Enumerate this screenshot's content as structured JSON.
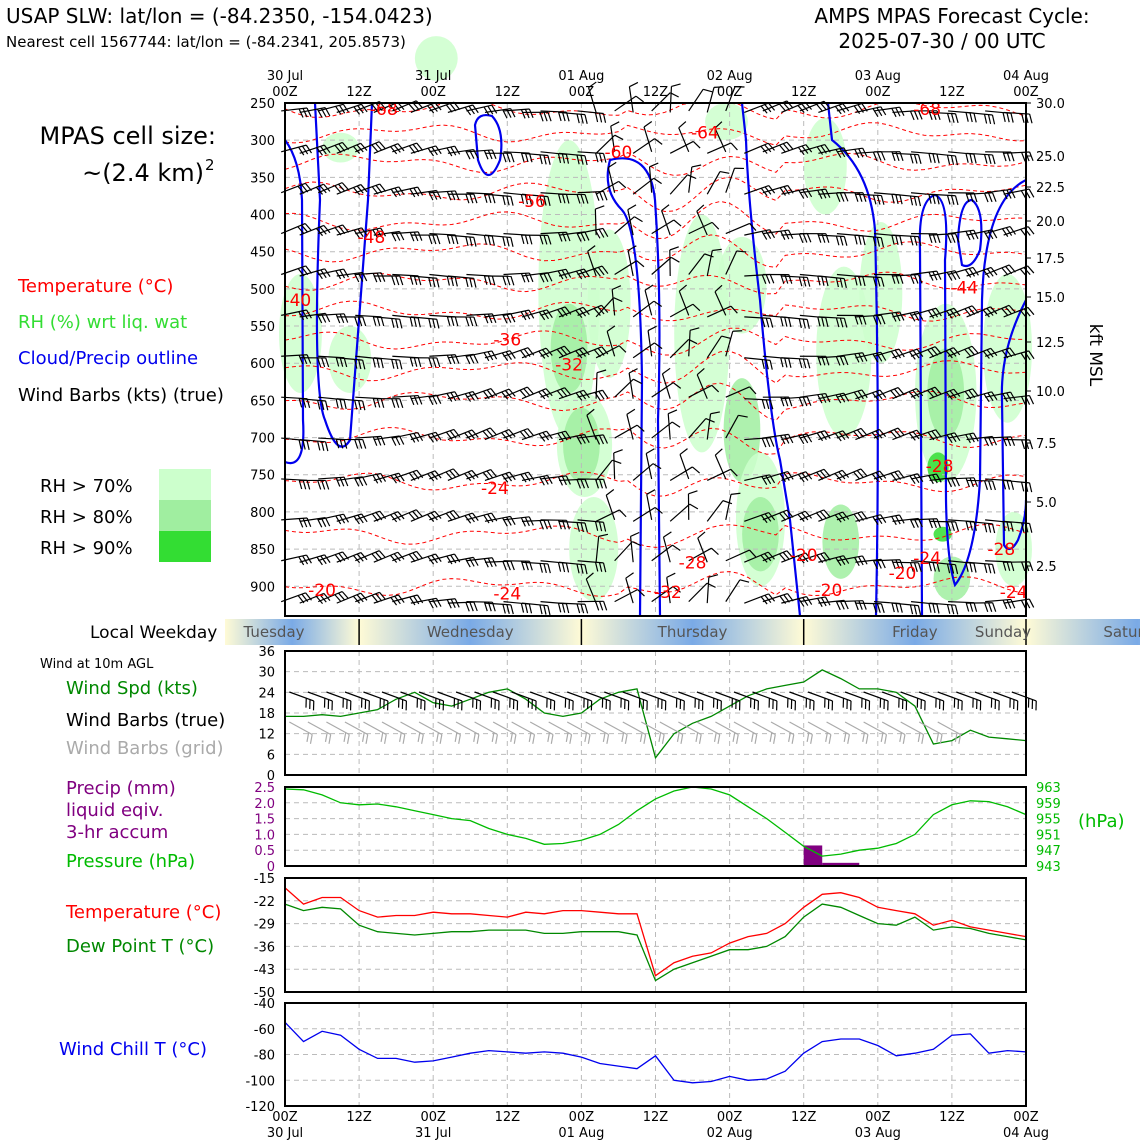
{
  "header": {
    "station_line": "USAP SLW: lat/lon = (-84.2350, -154.0423)",
    "cell_line": "Nearest cell 1567744: lat/lon = (-84.2341, 205.8573)",
    "cycle_line1": "AMPS MPAS Forecast Cycle:",
    "cycle_line2": "2025-07-30 / 00 UTC"
  },
  "cell_size": {
    "line1": "MPAS cell size:",
    "line2": "~(2.4 km)",
    "sup": "2"
  },
  "legend_upper": {
    "temperature": "Temperature (°C)",
    "rh": "RH (%) wrt liq. wat",
    "cloud": "Cloud/Precip outline",
    "wind": "Wind Barbs (kts) (true)",
    "rh70": "RH > 70%",
    "rh80": "RH > 80%",
    "rh90": "RH > 90%"
  },
  "colors": {
    "temperature": "#ff0000",
    "rh_label": "#33dd33",
    "cloud": "#0000ee",
    "rh70": "#ccffcc",
    "rh80": "#a0eea0",
    "rh90": "#33dd33",
    "wind_spd": "#008800",
    "precip": "#800080",
    "pressure": "#00bb00",
    "dewpoint": "#008800",
    "windchill": "#0000ee",
    "grid_barb": "#aaaaaa",
    "weekday_blue": "#7aaae6",
    "weekday_cream": "#fffbd6"
  },
  "weekday": {
    "label": "Local Weekday",
    "days": [
      "Tuesday",
      "Wednesday",
      "Thursday",
      "Friday",
      "Saturday",
      "Sunday"
    ]
  },
  "time_axis": {
    "top_labels": [
      [
        "30 Jul",
        "00Z"
      ],
      [
        "",
        "12Z"
      ],
      [
        "31 Jul",
        "00Z"
      ],
      [
        "",
        "12Z"
      ],
      [
        "01 Aug",
        "00Z"
      ],
      [
        "",
        "12Z"
      ],
      [
        "02 Aug",
        "00Z"
      ],
      [
        "",
        "12Z"
      ],
      [
        "03 Aug",
        "00Z"
      ],
      [
        "",
        "12Z"
      ],
      [
        "04 Aug",
        "00Z"
      ]
    ],
    "bottom_labels": [
      [
        "00Z",
        "30 Jul"
      ],
      [
        "12Z",
        ""
      ],
      [
        "00Z",
        "31 Jul"
      ],
      [
        "12Z",
        ""
      ],
      [
        "00Z",
        "01 Aug"
      ],
      [
        "12Z",
        ""
      ],
      [
        "00Z",
        "02 Aug"
      ],
      [
        "12Z",
        ""
      ],
      [
        "00Z",
        "03 Aug"
      ],
      [
        "12Z",
        ""
      ],
      [
        "00Z",
        "04 Aug"
      ]
    ]
  },
  "panel_labels": {
    "wind_header": "Wind at 10m AGL",
    "wind_spd": "Wind Spd (kts)",
    "wind_barbs_true": "Wind Barbs (true)",
    "wind_barbs_grid": "Wind Barbs (grid)",
    "precip1": "Precip (mm)",
    "precip2": "liquid eqiv.",
    "precip3": "3-hr accum",
    "pressure": "Pressure (hPa)",
    "pressure_unit": "(hPa)",
    "temp": "Temperature (°C)",
    "dewpt": "Dew Point T (°C)",
    "windchill": "Wind Chill T (°C)",
    "kft": "kft MSL"
  },
  "chart_data": [
    {
      "type": "heatmap",
      "name_hint": "time-height cross section",
      "x_hours": [
        0,
        120
      ],
      "pressure_ticks": [
        250,
        300,
        350,
        400,
        450,
        500,
        550,
        600,
        650,
        700,
        750,
        800,
        850,
        900
      ],
      "kft_ticks": [
        "30.0",
        "25.0",
        "22.5",
        "20.0",
        "17.5",
        "15.0",
        "12.5",
        "10.0",
        "7.5",
        "5.0",
        "2.5"
      ],
      "temperature_labels": [
        {
          "text": "-68",
          "t": 8,
          "p": 258
        },
        {
          "text": "-64",
          "t": 34,
          "p": 290
        },
        {
          "text": "-60",
          "t": 27,
          "p": 316
        },
        {
          "text": "-56",
          "t": 20,
          "p": 382
        },
        {
          "text": "-48",
          "t": 7,
          "p": 430
        },
        {
          "text": "-40",
          "t": 1,
          "p": 515
        },
        {
          "text": "-36",
          "t": 18,
          "p": 568
        },
        {
          "text": "-32",
          "t": 23,
          "p": 602
        },
        {
          "text": "-24",
          "t": 17,
          "p": 768
        },
        {
          "text": "-20",
          "t": 3,
          "p": 905
        },
        {
          "text": "-24",
          "t": 18,
          "p": 910
        },
        {
          "text": "-28",
          "t": 33,
          "p": 868
        },
        {
          "text": "-32",
          "t": 31,
          "p": 908
        },
        {
          "text": "-20",
          "t": 42,
          "p": 858
        },
        {
          "text": "-20",
          "t": 44,
          "p": 905
        },
        {
          "text": "-68",
          "t": 52,
          "p": 258
        },
        {
          "text": "-44",
          "t": 55,
          "p": 498
        },
        {
          "text": "-28",
          "t": 53,
          "p": 738
        },
        {
          "text": "-24",
          "t": 52,
          "p": 862
        },
        {
          "text": "-20",
          "t": 50,
          "p": 882
        },
        {
          "text": "-24",
          "t": 59,
          "p": 908
        },
        {
          "text": "-28",
          "t": 58,
          "p": 850
        }
      ]
    },
    {
      "type": "line",
      "name_hint": "10m wind speed",
      "x": [
        0,
        3,
        6,
        9,
        12,
        15,
        18,
        21,
        24,
        27,
        30,
        33,
        36,
        39,
        42,
        45,
        48,
        51,
        54,
        57,
        60,
        63,
        66,
        69,
        72,
        75,
        78,
        81,
        84,
        87,
        90,
        93,
        96,
        99,
        102,
        105,
        108,
        111,
        114,
        117,
        120
      ],
      "series": [
        {
          "name": "Wind Spd (kts)",
          "values": [
            17,
            17,
            17.5,
            17,
            18,
            19,
            22,
            24,
            21,
            20,
            22,
            24,
            25,
            22,
            18,
            17,
            18,
            22,
            24,
            25,
            5,
            12,
            15,
            17,
            20,
            23,
            25,
            26,
            27,
            30.5,
            28,
            25,
            25,
            24,
            20,
            9,
            10,
            13,
            11,
            10.5,
            10
          ]
        }
      ],
      "ylim": [
        0,
        36
      ],
      "yticks": [
        0,
        6,
        12,
        18,
        24,
        30,
        36
      ]
    },
    {
      "type": "line",
      "name_hint": "pressure and precipitation",
      "x": [
        0,
        3,
        6,
        9,
        12,
        15,
        18,
        21,
        24,
        27,
        30,
        33,
        36,
        39,
        42,
        45,
        48,
        51,
        54,
        57,
        60,
        63,
        66,
        69,
        72,
        75,
        78,
        81,
        84,
        87,
        90,
        93,
        96,
        99,
        102,
        105,
        108,
        111,
        114,
        117,
        120
      ],
      "series": [
        {
          "name": "Pressure (hPa)",
          "values": [
            962.5,
            962.3,
            961,
            959,
            958.5,
            958.7,
            958,
            957,
            956,
            955,
            954.5,
            952.5,
            951,
            950,
            948.5,
            948.7,
            949.5,
            951,
            953.5,
            957,
            960,
            962,
            963,
            962.5,
            961,
            958,
            955,
            951.5,
            948,
            945.5,
            946,
            947,
            947.5,
            948.7,
            951,
            956,
            958.5,
            959.5,
            959.3,
            958,
            956
          ]
        }
      ],
      "precip_bars": [
        {
          "t_start": 84,
          "t_end": 87,
          "value": 0.65
        },
        {
          "t_start": 87,
          "t_end": 93,
          "value": 0.1
        }
      ],
      "ylim_precip": [
        0,
        2.5
      ],
      "precip_ticks": [
        "0",
        "0.5",
        "1.0",
        "1.5",
        "2.0",
        "2.5"
      ],
      "ylim_pressure": [
        943,
        963
      ],
      "pressure_ticks": [
        "943",
        "947",
        "951",
        "955",
        "959",
        "963"
      ]
    },
    {
      "type": "line",
      "name_hint": "temperature and dew point",
      "x": [
        0,
        3,
        6,
        9,
        12,
        15,
        18,
        21,
        24,
        27,
        30,
        33,
        36,
        39,
        42,
        45,
        48,
        51,
        54,
        57,
        60,
        63,
        66,
        69,
        72,
        75,
        78,
        81,
        84,
        87,
        90,
        93,
        96,
        99,
        102,
        105,
        108,
        111,
        114,
        117,
        120
      ],
      "series": [
        {
          "name": "Temperature (°C)",
          "values": [
            -18,
            -23,
            -21,
            -21,
            -25,
            -27,
            -26.5,
            -26.5,
            -25.5,
            -26,
            -26,
            -26.5,
            -27,
            -25.5,
            -26,
            -25,
            -25,
            -25.5,
            -26,
            -26,
            -45,
            -41,
            -39,
            -38,
            -35,
            -33,
            -32,
            -29,
            -24,
            -20,
            -19.5,
            -21,
            -24,
            -25,
            -26,
            -29.5,
            -28,
            -30,
            -31,
            -32,
            -33
          ]
        },
        {
          "name": "Dew Point T (°C)",
          "values": [
            -23,
            -25,
            -24,
            -24.5,
            -29.5,
            -31.5,
            -32,
            -32.5,
            -32,
            -31.5,
            -31.5,
            -31,
            -31,
            -31,
            -32,
            -32,
            -31.5,
            -31.5,
            -31.5,
            -32.5,
            -46.5,
            -43,
            -41,
            -39,
            -37,
            -37,
            -36,
            -33,
            -27,
            -23,
            -24,
            -26.5,
            -29,
            -29.5,
            -27,
            -31,
            -30,
            -30.5,
            -32,
            -33,
            -34
          ]
        }
      ],
      "ylim": [
        -50,
        -15
      ],
      "yticks": [
        -50,
        -43,
        -36,
        -29,
        -22,
        -15
      ]
    },
    {
      "type": "line",
      "name_hint": "wind chill",
      "x": [
        0,
        3,
        6,
        9,
        12,
        15,
        18,
        21,
        24,
        27,
        30,
        33,
        36,
        39,
        42,
        45,
        48,
        51,
        54,
        57,
        60,
        63,
        66,
        69,
        72,
        75,
        78,
        81,
        84,
        87,
        90,
        93,
        96,
        99,
        102,
        105,
        108,
        111,
        114,
        117,
        120
      ],
      "series": [
        {
          "name": "Wind Chill T (°C)",
          "values": [
            -55,
            -70,
            -62,
            -65,
            -76,
            -83,
            -83,
            -86,
            -85,
            -82,
            -79,
            -77,
            -78,
            -79,
            -78,
            -79,
            -82,
            -87,
            -89,
            -91,
            -81,
            -100,
            -102,
            -101,
            -97,
            -100,
            -99,
            -93,
            -79,
            -70,
            -68,
            -68,
            -73,
            -81,
            -79,
            -76,
            -65,
            -64,
            -79,
            -77,
            -78
          ]
        }
      ],
      "ylim": [
        -120,
        -40
      ],
      "yticks": [
        -120,
        -100,
        -80,
        -60,
        -40
      ]
    }
  ]
}
